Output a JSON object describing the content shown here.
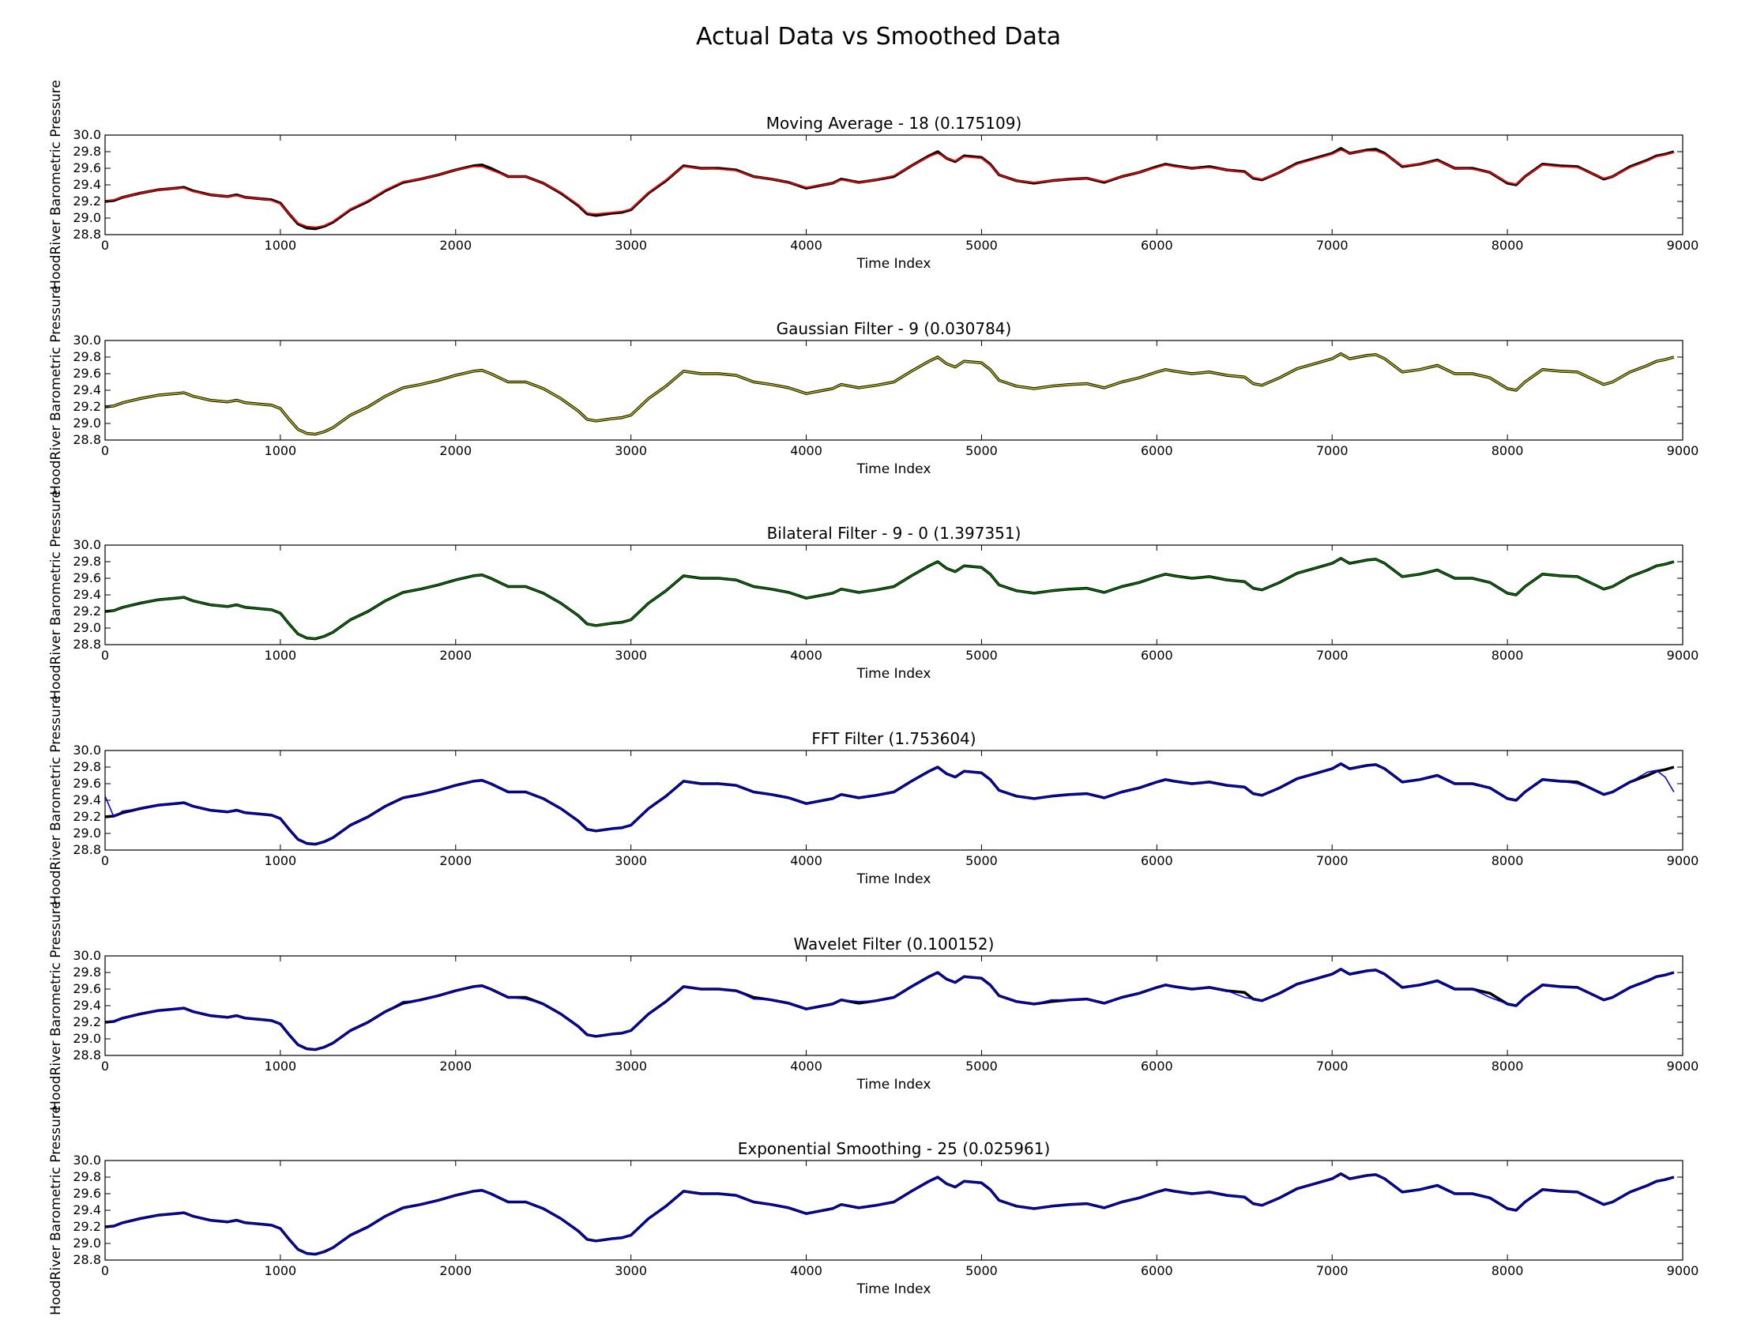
{
  "figure": {
    "title": "Actual Data vs Smoothed Data"
  },
  "chart_data": [
    {
      "type": "line",
      "title": "Moving Average - 18 (0.175109)",
      "xlabel": "Time Index",
      "ylabel": "HoodRiver Barometric Pressure",
      "xlim": [
        0,
        9000
      ],
      "ylim": [
        28.8,
        30.0
      ],
      "xticks": [
        0,
        1000,
        2000,
        3000,
        4000,
        5000,
        6000,
        7000,
        8000,
        9000
      ],
      "yticks": [
        28.8,
        29.0,
        29.2,
        29.4,
        29.6,
        29.8,
        30.0
      ],
      "grid": false,
      "legend": "none",
      "series": [
        {
          "role": "actual",
          "color": "#000000"
        },
        {
          "role": "smoothed",
          "color": "#ff0000"
        }
      ]
    },
    {
      "type": "line",
      "title": "Gaussian Filter - 9 (0.030784)",
      "xlabel": "Time Index",
      "ylabel": "HoodRiver Barometric Pressure",
      "xlim": [
        0,
        9000
      ],
      "ylim": [
        28.8,
        30.0
      ],
      "xticks": [
        0,
        1000,
        2000,
        3000,
        4000,
        5000,
        6000,
        7000,
        8000,
        9000
      ],
      "yticks": [
        28.8,
        29.0,
        29.2,
        29.4,
        29.6,
        29.8,
        30.0
      ],
      "grid": false,
      "legend": "none",
      "series": [
        {
          "role": "actual",
          "color": "#000000"
        },
        {
          "role": "smoothed",
          "color": "#bfbf00"
        }
      ]
    },
    {
      "type": "line",
      "title": "Bilateral Filter - 9 - 0 (1.397351)",
      "xlabel": "Time Index",
      "ylabel": "HoodRiver Barometric Pressure",
      "xlim": [
        0,
        9000
      ],
      "ylim": [
        28.8,
        30.0
      ],
      "xticks": [
        0,
        1000,
        2000,
        3000,
        4000,
        5000,
        6000,
        7000,
        8000,
        9000
      ],
      "yticks": [
        28.8,
        29.0,
        29.2,
        29.4,
        29.6,
        29.8,
        30.0
      ],
      "grid": false,
      "legend": "none",
      "series": [
        {
          "role": "actual",
          "color": "#000000"
        },
        {
          "role": "smoothed",
          "color": "#008000"
        }
      ]
    },
    {
      "type": "line",
      "title": "FFT Filter (1.753604)",
      "xlabel": "Time Index",
      "ylabel": "HoodRiver Barometric Pressure",
      "xlim": [
        0,
        9000
      ],
      "ylim": [
        28.8,
        30.0
      ],
      "xticks": [
        0,
        1000,
        2000,
        3000,
        4000,
        5000,
        6000,
        7000,
        8000,
        9000
      ],
      "yticks": [
        28.8,
        29.0,
        29.2,
        29.4,
        29.6,
        29.8,
        30.0
      ],
      "grid": false,
      "legend": "none",
      "series": [
        {
          "role": "actual",
          "color": "#000000"
        },
        {
          "role": "smoothed",
          "color": "#0000ff"
        }
      ]
    },
    {
      "type": "line",
      "title": "Wavelet Filter (0.100152)",
      "xlabel": "Time Index",
      "ylabel": "HoodRiver Barometric Pressure",
      "xlim": [
        0,
        9000
      ],
      "ylim": [
        28.8,
        30.0
      ],
      "xticks": [
        0,
        1000,
        2000,
        3000,
        4000,
        5000,
        6000,
        7000,
        8000,
        9000
      ],
      "yticks": [
        28.8,
        29.0,
        29.2,
        29.4,
        29.6,
        29.8,
        30.0
      ],
      "grid": false,
      "legend": "none",
      "series": [
        {
          "role": "actual",
          "color": "#000000"
        },
        {
          "role": "smoothed",
          "color": "#0000ff"
        }
      ]
    },
    {
      "type": "line",
      "title": "Exponential Smoothing - 25 (0.025961)",
      "xlabel": "Time Index",
      "ylabel": "HoodRiver Barometric Pressure",
      "xlim": [
        0,
        9000
      ],
      "ylim": [
        28.8,
        30.0
      ],
      "xticks": [
        0,
        1000,
        2000,
        3000,
        4000,
        5000,
        6000,
        7000,
        8000,
        9000
      ],
      "yticks": [
        28.8,
        29.0,
        29.2,
        29.4,
        29.6,
        29.8,
        30.0
      ],
      "grid": false,
      "legend": "none",
      "series": [
        {
          "role": "actual",
          "color": "#000000"
        },
        {
          "role": "smoothed",
          "color": "#0000ff"
        }
      ]
    }
  ],
  "data_points": {
    "x": [
      0,
      50,
      100,
      200,
      300,
      400,
      450,
      500,
      600,
      700,
      750,
      800,
      900,
      950,
      1000,
      1050,
      1100,
      1150,
      1200,
      1250,
      1300,
      1400,
      1500,
      1600,
      1700,
      1800,
      1900,
      2000,
      2100,
      2150,
      2200,
      2300,
      2400,
      2500,
      2600,
      2700,
      2750,
      2800,
      2900,
      2950,
      3000,
      3100,
      3200,
      3300,
      3400,
      3500,
      3600,
      3700,
      3800,
      3900,
      4000,
      4100,
      4150,
      4200,
      4300,
      4400,
      4500,
      4600,
      4700,
      4750,
      4800,
      4850,
      4900,
      5000,
      5050,
      5100,
      5200,
      5300,
      5400,
      5500,
      5600,
      5700,
      5800,
      5900,
      6000,
      6050,
      6100,
      6200,
      6300,
      6400,
      6500,
      6550,
      6600,
      6700,
      6800,
      6900,
      7000,
      7050,
      7100,
      7150,
      7200,
      7250,
      7300,
      7400,
      7500,
      7600,
      7700,
      7800,
      7900,
      8000,
      8050,
      8100,
      8200,
      8300,
      8400,
      8500,
      8550,
      8600,
      8700,
      8800,
      8850,
      8900,
      8950
    ],
    "actual": [
      29.2,
      29.21,
      29.25,
      29.3,
      29.34,
      29.36,
      29.37,
      29.33,
      29.28,
      29.26,
      29.28,
      29.25,
      29.23,
      29.22,
      29.18,
      29.05,
      28.93,
      28.88,
      28.87,
      28.9,
      28.95,
      29.1,
      29.2,
      29.33,
      29.43,
      29.47,
      29.52,
      29.58,
      29.63,
      29.64,
      29.6,
      29.5,
      29.5,
      29.42,
      29.3,
      29.15,
      29.05,
      29.03,
      29.06,
      29.07,
      29.1,
      29.3,
      29.45,
      29.63,
      29.6,
      29.6,
      29.58,
      29.5,
      29.47,
      29.43,
      29.36,
      29.4,
      29.42,
      29.47,
      29.43,
      29.46,
      29.5,
      29.63,
      29.75,
      29.8,
      29.72,
      29.68,
      29.75,
      29.73,
      29.65,
      29.52,
      29.45,
      29.42,
      29.45,
      29.47,
      29.48,
      29.43,
      29.5,
      29.55,
      29.62,
      29.65,
      29.63,
      29.6,
      29.62,
      29.58,
      29.56,
      29.48,
      29.46,
      29.55,
      29.66,
      29.72,
      29.78,
      29.84,
      29.78,
      29.8,
      29.82,
      29.83,
      29.78,
      29.62,
      29.65,
      29.7,
      29.6,
      29.6,
      29.55,
      29.42,
      29.4,
      29.5,
      29.65,
      29.63,
      29.62,
      29.52,
      29.47,
      29.5,
      29.62,
      29.7,
      29.75,
      29.77,
      29.8
    ],
    "smoothed": [
      [
        29.2,
        29.22,
        29.25,
        29.3,
        29.34,
        29.36,
        29.36,
        29.32,
        29.28,
        29.26,
        29.27,
        29.25,
        29.23,
        29.21,
        29.17,
        29.05,
        28.94,
        28.9,
        28.89,
        28.91,
        28.96,
        29.11,
        29.21,
        29.34,
        29.44,
        29.47,
        29.52,
        29.58,
        29.62,
        29.62,
        29.58,
        29.5,
        29.5,
        29.42,
        29.31,
        29.16,
        29.06,
        29.05,
        29.07,
        29.08,
        29.11,
        29.31,
        29.46,
        29.62,
        29.6,
        29.59,
        29.57,
        29.5,
        29.47,
        29.43,
        29.37,
        29.4,
        29.42,
        29.46,
        29.43,
        29.46,
        29.51,
        29.63,
        29.74,
        29.78,
        29.72,
        29.69,
        29.74,
        29.72,
        29.64,
        29.52,
        29.45,
        29.43,
        29.45,
        29.47,
        29.48,
        29.44,
        29.5,
        29.55,
        29.61,
        29.64,
        29.62,
        29.6,
        29.61,
        29.58,
        29.55,
        29.49,
        29.47,
        29.55,
        29.65,
        29.71,
        29.77,
        29.82,
        29.78,
        29.8,
        29.81,
        29.81,
        29.77,
        29.63,
        29.65,
        29.69,
        29.6,
        29.59,
        29.55,
        29.43,
        29.41,
        29.5,
        29.64,
        29.62,
        29.61,
        29.52,
        29.48,
        29.5,
        29.61,
        29.69,
        29.74,
        29.76,
        29.79
      ],
      [
        29.2,
        29.21,
        29.25,
        29.3,
        29.34,
        29.36,
        29.37,
        29.33,
        29.28,
        29.26,
        29.28,
        29.25,
        29.23,
        29.22,
        29.18,
        29.05,
        28.93,
        28.88,
        28.87,
        28.9,
        28.95,
        29.1,
        29.2,
        29.33,
        29.43,
        29.47,
        29.52,
        29.58,
        29.63,
        29.64,
        29.6,
        29.5,
        29.5,
        29.42,
        29.3,
        29.15,
        29.05,
        29.03,
        29.06,
        29.07,
        29.1,
        29.3,
        29.45,
        29.63,
        29.6,
        29.6,
        29.58,
        29.5,
        29.47,
        29.43,
        29.36,
        29.4,
        29.42,
        29.47,
        29.43,
        29.46,
        29.5,
        29.63,
        29.75,
        29.8,
        29.72,
        29.68,
        29.75,
        29.73,
        29.65,
        29.52,
        29.45,
        29.42,
        29.45,
        29.47,
        29.48,
        29.43,
        29.5,
        29.55,
        29.62,
        29.65,
        29.63,
        29.6,
        29.62,
        29.58,
        29.56,
        29.48,
        29.46,
        29.55,
        29.66,
        29.72,
        29.78,
        29.84,
        29.78,
        29.8,
        29.82,
        29.83,
        29.78,
        29.62,
        29.65,
        29.7,
        29.6,
        29.6,
        29.55,
        29.42,
        29.4,
        29.5,
        29.65,
        29.63,
        29.62,
        29.52,
        29.47,
        29.5,
        29.62,
        29.7,
        29.75,
        29.77,
        29.8
      ],
      [
        29.2,
        29.21,
        29.25,
        29.3,
        29.34,
        29.36,
        29.37,
        29.33,
        29.28,
        29.26,
        29.28,
        29.25,
        29.23,
        29.22,
        29.18,
        29.05,
        28.93,
        28.88,
        28.87,
        28.9,
        28.95,
        29.1,
        29.2,
        29.33,
        29.43,
        29.47,
        29.52,
        29.58,
        29.63,
        29.64,
        29.6,
        29.5,
        29.5,
        29.42,
        29.3,
        29.15,
        29.05,
        29.03,
        29.06,
        29.07,
        29.1,
        29.3,
        29.45,
        29.63,
        29.6,
        29.6,
        29.58,
        29.5,
        29.47,
        29.43,
        29.36,
        29.4,
        29.42,
        29.47,
        29.43,
        29.46,
        29.5,
        29.63,
        29.75,
        29.8,
        29.72,
        29.68,
        29.75,
        29.73,
        29.65,
        29.52,
        29.45,
        29.42,
        29.45,
        29.47,
        29.48,
        29.43,
        29.5,
        29.55,
        29.62,
        29.65,
        29.63,
        29.6,
        29.62,
        29.58,
        29.56,
        29.48,
        29.46,
        29.55,
        29.66,
        29.72,
        29.78,
        29.84,
        29.78,
        29.8,
        29.82,
        29.83,
        29.78,
        29.62,
        29.65,
        29.7,
        29.6,
        29.6,
        29.55,
        29.42,
        29.4,
        29.5,
        29.65,
        29.63,
        29.62,
        29.52,
        29.47,
        29.5,
        29.62,
        29.7,
        29.75,
        29.77,
        29.8
      ],
      [
        29.45,
        29.2,
        29.27,
        29.3,
        29.34,
        29.36,
        29.37,
        29.33,
        29.28,
        29.26,
        29.28,
        29.25,
        29.23,
        29.22,
        29.18,
        29.05,
        28.93,
        28.88,
        28.87,
        28.9,
        28.95,
        29.1,
        29.2,
        29.33,
        29.43,
        29.47,
        29.52,
        29.58,
        29.63,
        29.64,
        29.6,
        29.5,
        29.5,
        29.42,
        29.3,
        29.15,
        29.05,
        29.03,
        29.06,
        29.07,
        29.1,
        29.3,
        29.45,
        29.63,
        29.6,
        29.6,
        29.58,
        29.5,
        29.47,
        29.43,
        29.36,
        29.4,
        29.42,
        29.47,
        29.43,
        29.46,
        29.5,
        29.63,
        29.75,
        29.8,
        29.72,
        29.68,
        29.75,
        29.73,
        29.65,
        29.52,
        29.45,
        29.42,
        29.45,
        29.47,
        29.48,
        29.43,
        29.5,
        29.55,
        29.62,
        29.65,
        29.63,
        29.6,
        29.62,
        29.58,
        29.56,
        29.48,
        29.46,
        29.55,
        29.66,
        29.72,
        29.78,
        29.84,
        29.78,
        29.8,
        29.82,
        29.83,
        29.78,
        29.62,
        29.65,
        29.7,
        29.6,
        29.6,
        29.55,
        29.42,
        29.4,
        29.5,
        29.65,
        29.63,
        29.6,
        29.52,
        29.47,
        29.5,
        29.62,
        29.74,
        29.76,
        29.68,
        29.5
      ],
      [
        29.2,
        29.21,
        29.25,
        29.3,
        29.34,
        29.36,
        29.37,
        29.33,
        29.28,
        29.26,
        29.28,
        29.25,
        29.23,
        29.22,
        29.18,
        29.05,
        28.93,
        28.88,
        28.87,
        28.9,
        28.95,
        29.1,
        29.2,
        29.33,
        29.45,
        29.46,
        29.52,
        29.58,
        29.63,
        29.64,
        29.6,
        29.5,
        29.48,
        29.42,
        29.3,
        29.15,
        29.05,
        29.03,
        29.06,
        29.07,
        29.1,
        29.3,
        29.45,
        29.63,
        29.6,
        29.6,
        29.58,
        29.48,
        29.47,
        29.43,
        29.36,
        29.4,
        29.42,
        29.47,
        29.45,
        29.46,
        29.5,
        29.63,
        29.75,
        29.8,
        29.72,
        29.68,
        29.75,
        29.73,
        29.65,
        29.52,
        29.45,
        29.42,
        29.47,
        29.47,
        29.48,
        29.43,
        29.5,
        29.55,
        29.62,
        29.65,
        29.63,
        29.6,
        29.62,
        29.58,
        29.5,
        29.48,
        29.46,
        29.55,
        29.66,
        29.72,
        29.78,
        29.84,
        29.78,
        29.8,
        29.82,
        29.83,
        29.78,
        29.62,
        29.65,
        29.7,
        29.6,
        29.6,
        29.5,
        29.42,
        29.4,
        29.5,
        29.65,
        29.63,
        29.62,
        29.52,
        29.47,
        29.5,
        29.62,
        29.7,
        29.75,
        29.77,
        29.8
      ],
      [
        29.2,
        29.21,
        29.25,
        29.3,
        29.34,
        29.36,
        29.37,
        29.33,
        29.28,
        29.26,
        29.28,
        29.25,
        29.23,
        29.22,
        29.18,
        29.05,
        28.93,
        28.88,
        28.87,
        28.9,
        28.95,
        29.1,
        29.2,
        29.33,
        29.43,
        29.47,
        29.52,
        29.58,
        29.63,
        29.64,
        29.6,
        29.5,
        29.5,
        29.42,
        29.3,
        29.15,
        29.05,
        29.03,
        29.06,
        29.07,
        29.1,
        29.3,
        29.45,
        29.63,
        29.6,
        29.6,
        29.58,
        29.5,
        29.47,
        29.43,
        29.36,
        29.4,
        29.42,
        29.47,
        29.43,
        29.46,
        29.5,
        29.63,
        29.75,
        29.8,
        29.72,
        29.68,
        29.75,
        29.73,
        29.65,
        29.52,
        29.45,
        29.42,
        29.45,
        29.47,
        29.48,
        29.43,
        29.5,
        29.55,
        29.62,
        29.65,
        29.63,
        29.6,
        29.62,
        29.58,
        29.56,
        29.48,
        29.46,
        29.55,
        29.66,
        29.72,
        29.78,
        29.84,
        29.78,
        29.8,
        29.82,
        29.83,
        29.78,
        29.62,
        29.65,
        29.7,
        29.6,
        29.6,
        29.55,
        29.42,
        29.4,
        29.5,
        29.65,
        29.63,
        29.62,
        29.52,
        29.47,
        29.5,
        29.62,
        29.7,
        29.75,
        29.77,
        29.8
      ]
    ]
  }
}
